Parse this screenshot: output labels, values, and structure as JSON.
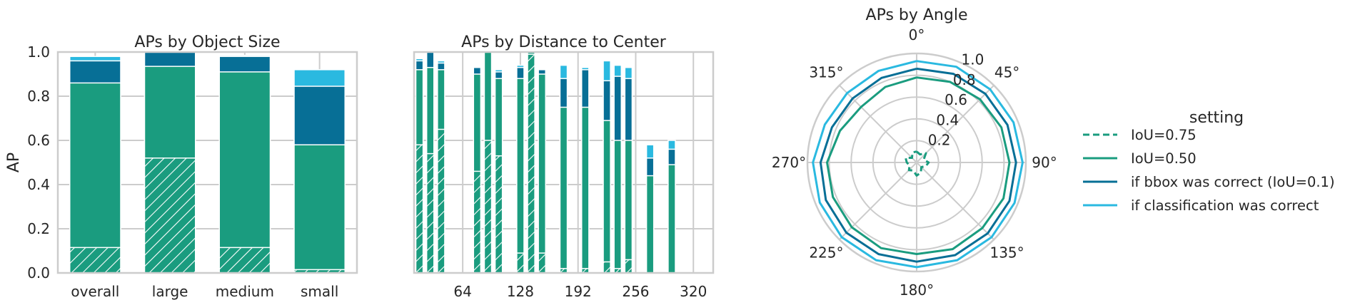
{
  "colors": {
    "iou75": "#1a9c7f",
    "iou50": "#1a9c7f",
    "bbox": "#076f96",
    "cls": "#2ab9e0",
    "grid": "#cccccc",
    "frame": "#cccccc"
  },
  "chart_data": [
    {
      "type": "bar",
      "subtype": "stacked",
      "title": "APs by Object Size",
      "ylabel": "AP",
      "ylim": [
        0,
        1
      ],
      "yticks": [
        "0.0",
        "0.2",
        "0.4",
        "0.6",
        "0.8",
        "1.0"
      ],
      "categories": [
        "overall",
        "large",
        "medium",
        "small"
      ],
      "series": [
        {
          "key": "iou75",
          "values": [
            0.115,
            0.52,
            0.115,
            0.015
          ]
        },
        {
          "key": "iou50",
          "values": [
            0.86,
            0.935,
            0.91,
            0.58
          ]
        },
        {
          "key": "bbox",
          "values": [
            0.96,
            1.0,
            0.98,
            0.845
          ]
        },
        {
          "key": "cls",
          "values": [
            0.98,
            1.0,
            0.985,
            0.92
          ]
        }
      ]
    },
    {
      "type": "bar",
      "subtype": "stacked",
      "title": "APs by Distance to Center",
      "ylim": [
        0,
        1
      ],
      "xticks": [
        "64",
        "128",
        "192",
        "256",
        "320"
      ],
      "xtick_values": [
        64,
        128,
        192,
        256,
        320
      ],
      "xlim": [
        10,
        342
      ],
      "bar_width": 8,
      "x": [
        16,
        28,
        40,
        80,
        92,
        104,
        128,
        140,
        152,
        176,
        200,
        224,
        236,
        248,
        272,
        296
      ],
      "series": [
        {
          "key": "iou75",
          "values": [
            0.58,
            0.54,
            0.65,
            0.46,
            0.6,
            0.53,
            0.09,
            0.99,
            0.09,
            0.02,
            0.02,
            0.05,
            0.02,
            0.06,
            0.0,
            0.0
          ]
        },
        {
          "key": "iou50",
          "values": [
            0.92,
            0.93,
            0.92,
            0.9,
            1.0,
            0.88,
            0.88,
            1.0,
            0.9,
            0.75,
            0.75,
            0.69,
            0.6,
            0.6,
            0.44,
            0.49
          ]
        },
        {
          "key": "bbox",
          "values": [
            0.96,
            1.0,
            0.95,
            0.93,
            1.0,
            0.91,
            0.93,
            1.0,
            0.92,
            0.88,
            0.92,
            0.87,
            0.89,
            0.88,
            0.52,
            0.56
          ]
        },
        {
          "key": "cls",
          "values": [
            0.97,
            1.0,
            0.96,
            0.93,
            1.0,
            0.92,
            0.94,
            1.0,
            0.92,
            0.94,
            0.93,
            0.96,
            0.94,
            0.93,
            0.58,
            0.6
          ]
        }
      ]
    },
    {
      "type": "line",
      "subtype": "polar",
      "title": "APs by Angle",
      "rlim": [
        0,
        1
      ],
      "rticks": [
        "0.2",
        "0.4",
        "0.6",
        "0.8",
        "1.0"
      ],
      "angle_labels": [
        "0°",
        "45°",
        "90°",
        "135°",
        "180°",
        "225°",
        "270°",
        "315°"
      ],
      "theta_direction": "clockwise",
      "theta_zero": "top",
      "legend_title": "setting",
      "legend_location": "right",
      "angles_deg": [
        0,
        22.5,
        45,
        67.5,
        90,
        112.5,
        135,
        157.5,
        180,
        202.5,
        225,
        247.5,
        270,
        292.5,
        315,
        337.5
      ],
      "series": [
        {
          "key": "iou75",
          "name": "IoU=0.75",
          "style": "dashed",
          "r": [
            0.1,
            0.08,
            0.12,
            0.07,
            0.11,
            0.09,
            0.06,
            0.1,
            0.12,
            0.08,
            0.1,
            0.07,
            0.09,
            0.11,
            0.06,
            0.1
          ]
        },
        {
          "key": "iou50",
          "name": "IoU=0.50",
          "style": "solid",
          "r": [
            0.78,
            0.8,
            0.82,
            0.84,
            0.85,
            0.86,
            0.85,
            0.86,
            0.84,
            0.85,
            0.84,
            0.83,
            0.82,
            0.76,
            0.72,
            0.75
          ]
        },
        {
          "key": "bbox",
          "name": "if bbox was correct (IoU=0.1)",
          "style": "solid",
          "r": [
            0.86,
            0.88,
            0.89,
            0.9,
            0.91,
            0.92,
            0.92,
            0.92,
            0.91,
            0.91,
            0.91,
            0.9,
            0.88,
            0.84,
            0.83,
            0.84
          ]
        },
        {
          "key": "cls",
          "name": "if classification was correct",
          "style": "solid",
          "r": [
            0.93,
            0.95,
            0.95,
            0.96,
            0.97,
            0.97,
            0.97,
            0.97,
            0.96,
            0.97,
            0.97,
            0.96,
            0.95,
            0.91,
            0.9,
            0.91
          ]
        }
      ]
    }
  ]
}
